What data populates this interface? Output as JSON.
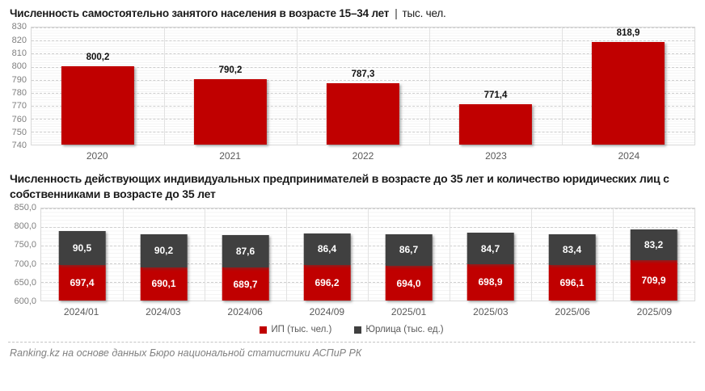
{
  "page": {
    "footer": "Ranking.kz на основе данных Бюро национальной статистики АСПиР РК"
  },
  "chart_data": [
    {
      "type": "bar",
      "title": "Численность самостоятельно занятого населения в возрасте 15–34 лет",
      "title_separator": "|",
      "unit": "тыс. чел.",
      "categories": [
        "2020",
        "2021",
        "2022",
        "2023",
        "2024"
      ],
      "values": [
        800.2,
        790.2,
        787.3,
        771.4,
        818.9
      ],
      "bar_color": "#c00000",
      "ylim": [
        740,
        830
      ],
      "ytick_step": 10,
      "ytick_decimals": 0,
      "bar_ratio": 0.55,
      "grid": true,
      "number_format": "comma-decimal",
      "legend_position": "none"
    },
    {
      "type": "bar-stacked",
      "title": "Численность действующих индивидуальных предпринимателей в возрасте до 35 лет и количество юридических лиц с собственниками в возрасте до 35 лет",
      "categories": [
        "2024/01",
        "2024/03",
        "2024/06",
        "2024/09",
        "2025/01",
        "2025/03",
        "2025/06",
        "2025/09"
      ],
      "series": [
        {
          "name": "ИП (тыс. чел.)",
          "color": "#c00000",
          "values": [
            697.4,
            690.1,
            689.7,
            696.2,
            694.0,
            698.9,
            696.1,
            709.9
          ]
        },
        {
          "name": "Юрлица (тыс. ед.)",
          "color": "#404040",
          "values": [
            90.5,
            90.2,
            87.6,
            86.4,
            86.7,
            84.7,
            83.4,
            83.2
          ]
        }
      ],
      "ylim": [
        600,
        850
      ],
      "ytick_step": 50,
      "ytick_decimals": 1,
      "bar_ratio": 0.58,
      "grid": true,
      "number_format": "comma-decimal",
      "legend_position": "bottom"
    }
  ]
}
